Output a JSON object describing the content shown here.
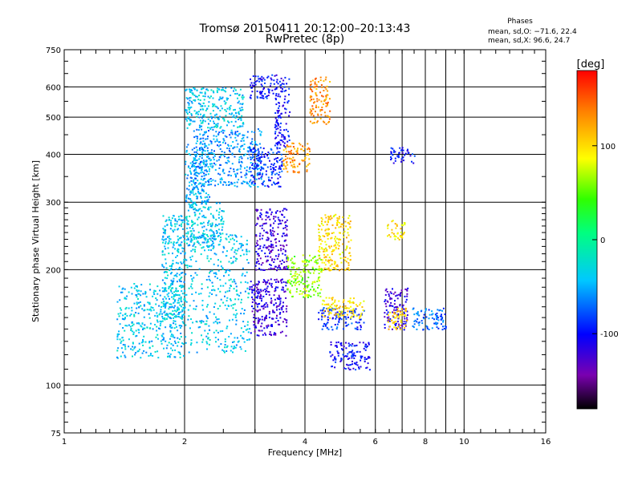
{
  "chart_data": {
    "type": "scatter",
    "title": "Tromsø 20150411 20:12:00–20:13:43",
    "subtitle": "RwPretec (8p)",
    "xlabel": "Frequency [MHz]",
    "ylabel": "Stationary phase Virtual Height [km]",
    "x_scale": "log",
    "y_scale": "log",
    "xlim": [
      1,
      16
    ],
    "ylim": [
      75,
      750
    ],
    "x_ticks": [
      1,
      2,
      4,
      6,
      8,
      10,
      16
    ],
    "x_gridlines": [
      2,
      3,
      4,
      5,
      6,
      7,
      8,
      9,
      10
    ],
    "y_ticks": [
      75,
      100,
      200,
      300,
      400,
      500,
      600,
      750
    ],
    "y_gridlines": [
      100,
      200,
      300,
      400,
      500,
      600
    ],
    "grid": true,
    "phase_stats": {
      "heading": "Phases",
      "line_o": "mean, sd,O: −71.6, 22.4",
      "line_x": "mean, sd,X:  96.6, 24.7"
    },
    "colorbar": {
      "label": "[deg]",
      "range": [
        -180,
        180
      ],
      "ticks": [
        100,
        0,
        -100
      ]
    },
    "point_clusters": [
      {
        "x": [
          1.35,
          2.0
        ],
        "y": [
          118,
          185
        ],
        "phase": -40
      },
      {
        "x": [
          1.75,
          2.0
        ],
        "y": [
          150,
          280
        ],
        "phase": -40
      },
      {
        "x": [
          2.0,
          2.9
        ],
        "y": [
          122,
          250
        ],
        "phase": -40
      },
      {
        "x": [
          2.0,
          2.5
        ],
        "y": [
          230,
          300
        ],
        "phase": -40
      },
      {
        "x": [
          2.0,
          2.3
        ],
        "y": [
          300,
          430
        ],
        "phase": -50
      },
      {
        "x": [
          2.1,
          3.1
        ],
        "y": [
          330,
          470
        ],
        "phase": -60
      },
      {
        "x": [
          2.0,
          2.8
        ],
        "y": [
          470,
          600
        ],
        "phase": -40
      },
      {
        "x": [
          2.9,
          3.5
        ],
        "y": [
          330,
          420
        ],
        "phase": -90
      },
      {
        "x": [
          3.35,
          3.65
        ],
        "y": [
          420,
          640
        ],
        "phase": -100
      },
      {
        "x": [
          2.9,
          3.4
        ],
        "y": [
          560,
          650
        ],
        "phase": -100
      },
      {
        "x": [
          2.9,
          3.6
        ],
        "y": [
          135,
          190
        ],
        "phase": -120
      },
      {
        "x": [
          3.0,
          3.6
        ],
        "y": [
          200,
          290
        ],
        "phase": -120
      },
      {
        "x": [
          3.5,
          4.1
        ],
        "y": [
          360,
          430
        ],
        "phase": 130
      },
      {
        "x": [
          4.1,
          4.6
        ],
        "y": [
          480,
          640
        ],
        "phase": 130
      },
      {
        "x": [
          3.6,
          4.4
        ],
        "y": [
          170,
          220
        ],
        "phase": 60
      },
      {
        "x": [
          4.3,
          5.6
        ],
        "y": [
          140,
          160
        ],
        "phase": -90
      },
      {
        "x": [
          4.4,
          5.6
        ],
        "y": [
          150,
          170
        ],
        "phase": 100
      },
      {
        "x": [
          4.3,
          5.2
        ],
        "y": [
          200,
          280
        ],
        "phase": 100
      },
      {
        "x": [
          6.3,
          7.2
        ],
        "y": [
          140,
          180
        ],
        "phase": -120
      },
      {
        "x": [
          6.4,
          7.2
        ],
        "y": [
          140,
          160
        ],
        "phase": 110
      },
      {
        "x": [
          6.4,
          7.1
        ],
        "y": [
          240,
          270
        ],
        "phase": 100
      },
      {
        "x": [
          7.4,
          9.0
        ],
        "y": [
          140,
          160
        ],
        "phase": -70
      },
      {
        "x": [
          6.5,
          7.5
        ],
        "y": [
          380,
          420
        ],
        "phase": -100
      },
      {
        "x": [
          4.6,
          5.8
        ],
        "y": [
          110,
          130
        ],
        "phase": -100
      }
    ]
  }
}
